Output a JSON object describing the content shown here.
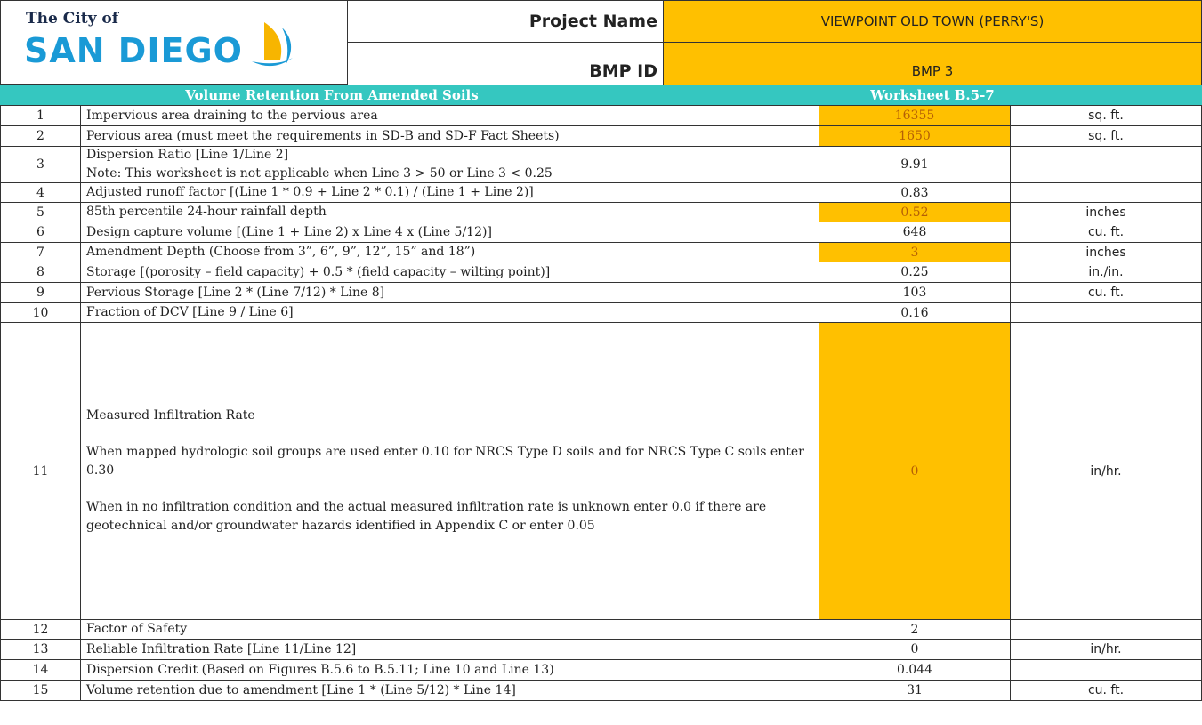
{
  "header": {
    "logo": {
      "line1": "The City of",
      "line2": "SAN DIEGO"
    },
    "project_label": "Project Name",
    "project_value": "VIEWPOINT OLD TOWN (PERRY'S)",
    "bmp_label": "BMP ID",
    "bmp_value": "BMP 3",
    "section_title": "Volume Retention From Amended Soils",
    "worksheet": "Worksheet B.5-7"
  },
  "table": {
    "rows": [
      {
        "number": 1,
        "lines": [
          "Impervious area draining to the pervious area"
        ],
        "value": 16355,
        "unit": "sq. ft.",
        "highlight": true
      },
      {
        "number": 2,
        "lines": [
          "Pervious area (must meet the requirements in SD-B and SD-F Fact Sheets)"
        ],
        "value": 1650,
        "unit": "sq. ft.",
        "highlight": true
      },
      {
        "number": 3,
        "lines": [
          "Dispersion Ratio [Line 1/Line 2]",
          "Note: This worksheet is not applicable when Line 3 > 50 or Line 3 < 0.25"
        ],
        "value": 9.91
      },
      {
        "number": 4,
        "lines": [
          "Adjusted runoff factor [(Line 1 * 0.9 + Line 2 * 0.1) / (Line 1 + Line 2)]"
        ],
        "value": 0.83
      },
      {
        "number": 5,
        "lines": [
          "85th percentile 24-hour rainfall depth"
        ],
        "value": 0.52,
        "unit": "inches",
        "highlight": true
      },
      {
        "number": 6,
        "lines": [
          "Design capture volume [(Line 1 + Line 2) x Line 4 x (Line 5/12)]"
        ],
        "value": 648,
        "unit": "cu. ft."
      },
      {
        "number": 7,
        "lines": [
          "Amendment Depth (Choose from 3”, 6”, 9”, 12”, 15” and 18”)"
        ],
        "value": 3,
        "unit": "inches",
        "highlight": true
      },
      {
        "number": 8,
        "lines": [
          "Storage [(porosity – field capacity) + 0.5 * (field capacity – wilting point)]"
        ],
        "value": 0.25,
        "unit": "in./in."
      },
      {
        "number": 9,
        "lines": [
          "Pervious Storage [Line 2 * (Line 7/12) * Line 8]"
        ],
        "value": 103,
        "unit": "cu. ft."
      },
      {
        "number": 10,
        "lines": [
          "Fraction of DCV [Line 9 / Line 6]"
        ],
        "value": 0.16
      },
      {
        "number": 11,
        "paragraphs": [
          "Measured Infiltration Rate",
          "When mapped hydrologic soil groups are used enter 0.10 for NRCS Type D soils and for NRCS Type C soils enter 0.30",
          "When in no infiltration condition and the actual measured infiltration rate is unknown enter 0.0 if there are geotechnical and/or groundwater hazards identified in Appendix C or enter 0.05"
        ],
        "value": 0,
        "unit": "in/hr.",
        "highlight": true
      },
      {
        "number": 12,
        "lines": [
          "Factor of Safety"
        ],
        "value": 2
      },
      {
        "number": 13,
        "lines": [
          "Reliable Infiltration Rate [Line 11/Line 12]"
        ],
        "value": 0,
        "unit": "in/hr."
      },
      {
        "number": 14,
        "lines": [
          "Dispersion Credit (Based on Figures B.5.6 to B.5.11; Line 10 and Line 13)"
        ],
        "value": 0.044
      },
      {
        "number": 15,
        "lines": [
          "Volume retention due to amendment [Line 1 * (Line 5/12) * Line 14]"
        ],
        "value": 31,
        "unit": "cu. ft."
      }
    ]
  }
}
